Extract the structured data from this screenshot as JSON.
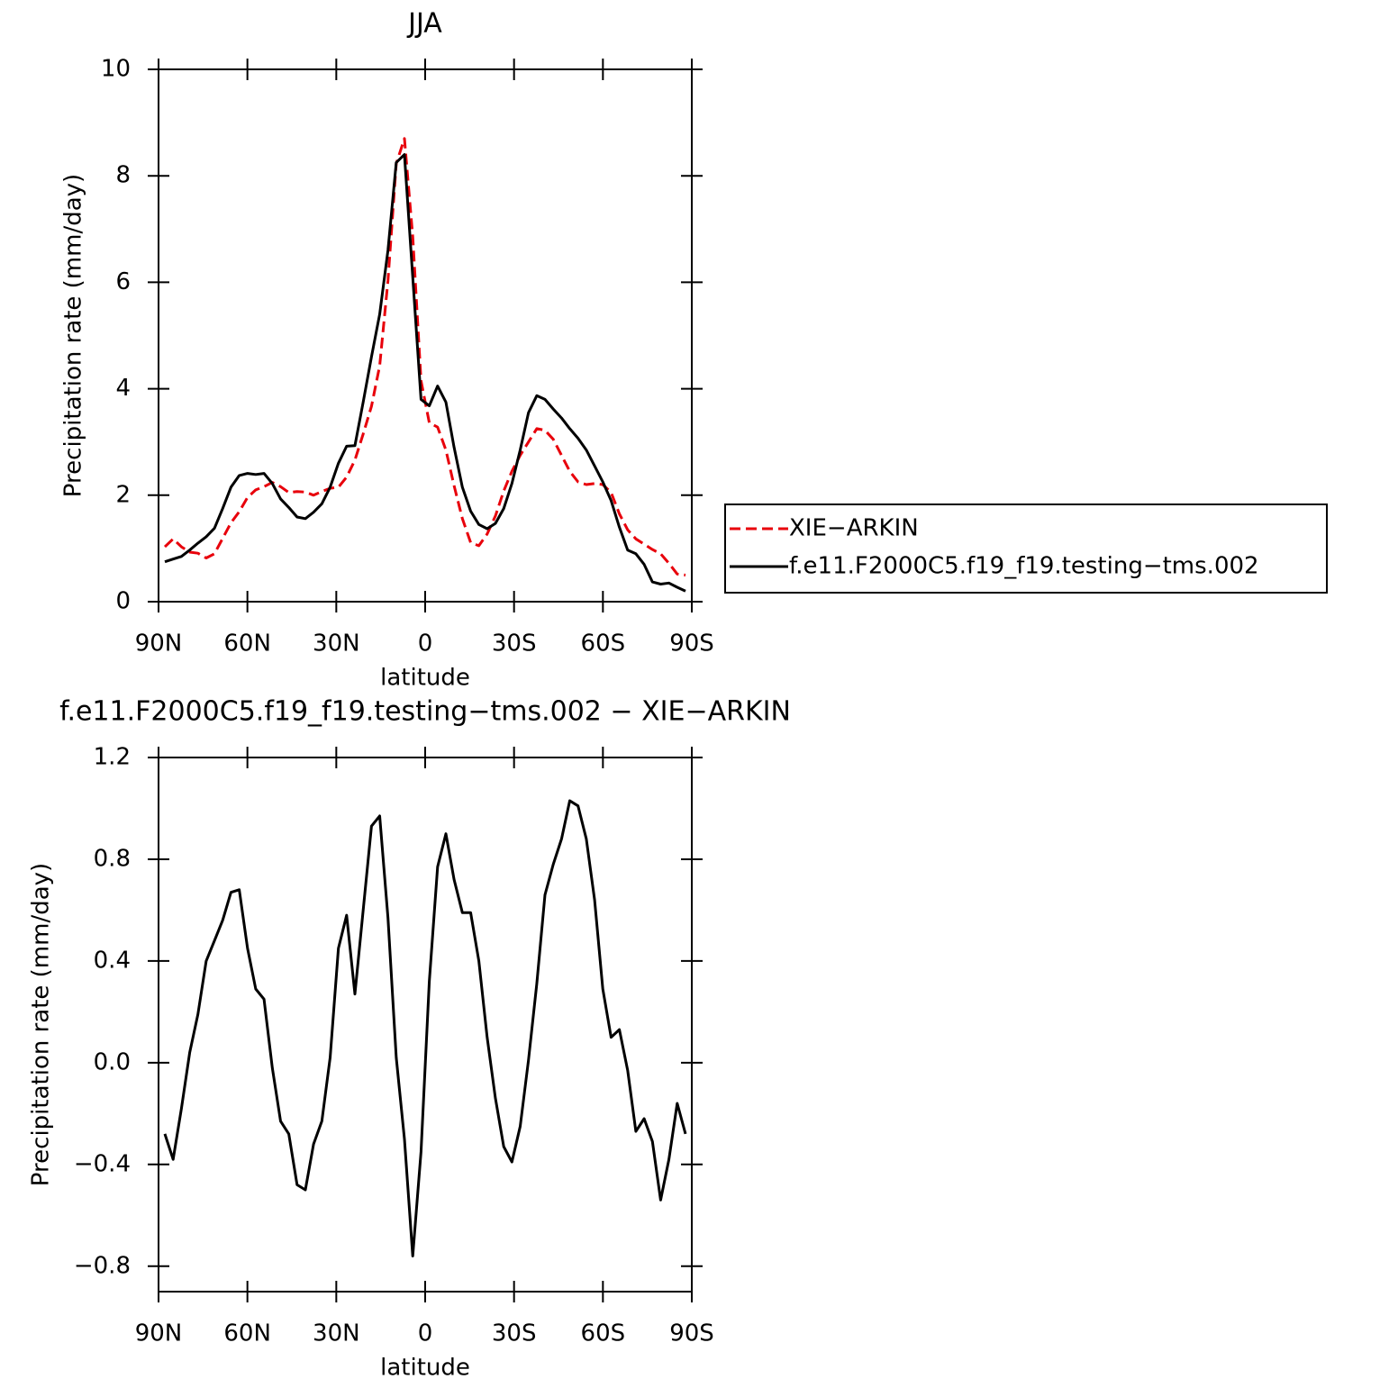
{
  "chart_data": [
    {
      "type": "line",
      "title": "JJA",
      "xlabel": "latitude",
      "ylabel": "Precipitation rate (mm/day)",
      "x": [
        87.86,
        85.07,
        82.28,
        79.49,
        76.7,
        73.91,
        71.13,
        68.34,
        65.55,
        62.76,
        59.97,
        57.18,
        54.39,
        51.6,
        48.81,
        46.02,
        43.24,
        40.45,
        37.66,
        34.87,
        32.08,
        29.29,
        26.5,
        23.71,
        20.92,
        18.13,
        15.35,
        12.56,
        9.77,
        6.98,
        4.19,
        1.4,
        -1.4,
        -4.19,
        -6.98,
        -9.77,
        -12.56,
        -15.35,
        -18.13,
        -20.92,
        -23.71,
        -26.5,
        -29.29,
        -32.08,
        -34.87,
        -37.66,
        -40.45,
        -43.24,
        -46.02,
        -48.81,
        -51.6,
        -54.39,
        -57.18,
        -59.97,
        -62.76,
        -65.55,
        -68.34,
        -71.13,
        -73.91,
        -76.7,
        -79.49,
        -82.28,
        -85.07,
        -87.86
      ],
      "series": [
        {
          "name": "XIE−ARKIN",
          "color": "#e8000b",
          "dashed": true,
          "values": [
            1.03,
            1.18,
            1.03,
            0.93,
            0.91,
            0.82,
            0.9,
            1.19,
            1.48,
            1.69,
            1.96,
            2.1,
            2.16,
            2.24,
            2.16,
            2.05,
            2.07,
            2.06,
            2.0,
            2.07,
            2.13,
            2.15,
            2.34,
            2.66,
            3.15,
            3.67,
            4.43,
            6.03,
            8.23,
            8.7,
            6.86,
            4.15,
            3.36,
            3.28,
            2.85,
            2.18,
            1.56,
            1.11,
            1.05,
            1.27,
            1.61,
            2.08,
            2.45,
            2.75,
            3.0,
            3.25,
            3.22,
            3.05,
            2.75,
            2.45,
            2.25,
            2.2,
            2.22,
            2.2,
            2.05,
            1.65,
            1.35,
            1.18,
            1.08,
            0.98,
            0.9,
            0.72,
            0.52,
            0.5
          ]
        },
        {
          "name": "f.e11.F2000C5.f19_f19.testing−tms.002",
          "color": "#000000",
          "dashed": false,
          "values": [
            0.75,
            0.8,
            0.85,
            0.97,
            1.1,
            1.22,
            1.38,
            1.75,
            2.15,
            2.37,
            2.41,
            2.39,
            2.41,
            2.22,
            1.93,
            1.77,
            1.59,
            1.56,
            1.68,
            1.84,
            2.15,
            2.6,
            2.92,
            2.93,
            3.75,
            4.6,
            5.4,
            6.6,
            8.25,
            8.4,
            6.1,
            3.8,
            3.68,
            4.05,
            3.75,
            2.9,
            2.15,
            1.7,
            1.45,
            1.37,
            1.47,
            1.75,
            2.22,
            2.85,
            3.55,
            3.87,
            3.8,
            3.62,
            3.45,
            3.25,
            3.07,
            2.85,
            2.55,
            2.25,
            1.9,
            1.4,
            0.97,
            0.9,
            0.7,
            0.37,
            0.33,
            0.35,
            0.27,
            0.2
          ]
        }
      ],
      "xlim": [
        90,
        -90
      ],
      "xticks": [
        {
          "value": 90,
          "label": "90N"
        },
        {
          "value": 60,
          "label": "60N"
        },
        {
          "value": 30,
          "label": "30N"
        },
        0,
        {
          "value": -30,
          "label": "30S"
        },
        {
          "value": -60,
          "label": "60S"
        },
        {
          "value": -90,
          "label": "90S"
        }
      ],
      "ylim": [
        0,
        10
      ],
      "yticks": [
        0,
        2,
        4,
        6,
        8,
        10
      ],
      "legend": "right"
    },
    {
      "type": "line",
      "title": "f.e11.F2000C5.f19_f19.testing−tms.002 − XIE−ARKIN",
      "xlabel": "latitude",
      "ylabel": "Precipitation rate (mm/day)",
      "x": [
        87.86,
        85.07,
        82.28,
        79.49,
        76.7,
        73.91,
        71.13,
        68.34,
        65.55,
        62.76,
        59.97,
        57.18,
        54.39,
        51.6,
        48.81,
        46.02,
        43.24,
        40.45,
        37.66,
        34.87,
        32.08,
        29.29,
        26.5,
        23.71,
        20.92,
        18.13,
        15.35,
        12.56,
        9.77,
        6.98,
        4.19,
        1.4,
        -1.4,
        -4.19,
        -6.98,
        -9.77,
        -12.56,
        -15.35,
        -18.13,
        -20.92,
        -23.71,
        -26.5,
        -29.29,
        -32.08,
        -34.87,
        -37.66,
        -40.45,
        -43.24,
        -46.02,
        -48.81,
        -51.6,
        -54.39,
        -57.18,
        -59.97,
        -62.76,
        -65.55,
        -68.34,
        -71.13,
        -73.91,
        -76.7,
        -79.49,
        -82.28,
        -85.07,
        -87.86
      ],
      "series": [
        {
          "color": "#000000",
          "dashed": false,
          "values": [
            -0.28,
            -0.38,
            -0.18,
            0.04,
            0.19,
            0.4,
            0.48,
            0.56,
            0.67,
            0.68,
            0.45,
            0.29,
            0.25,
            -0.02,
            -0.23,
            -0.28,
            -0.48,
            -0.5,
            -0.32,
            -0.23,
            0.02,
            0.45,
            0.58,
            0.27,
            0.6,
            0.93,
            0.97,
            0.57,
            0.02,
            -0.3,
            -0.76,
            -0.35,
            0.32,
            0.77,
            0.9,
            0.72,
            0.59,
            0.59,
            0.4,
            0.1,
            -0.14,
            -0.33,
            -0.39,
            -0.25,
            0.01,
            0.31,
            0.66,
            0.78,
            0.88,
            1.03,
            1.01,
            0.88,
            0.64,
            0.29,
            0.1,
            0.13,
            -0.03,
            -0.27,
            -0.22,
            -0.31,
            -0.54,
            -0.38,
            -0.16,
            -0.28
          ]
        }
      ],
      "xlim": [
        90,
        -90
      ],
      "xticks": [
        {
          "value": 90,
          "label": "90N"
        },
        {
          "value": 60,
          "label": "60N"
        },
        {
          "value": 30,
          "label": "30N"
        },
        0,
        {
          "value": -30,
          "label": "30S"
        },
        {
          "value": -60,
          "label": "60S"
        },
        {
          "value": -90,
          "label": "90S"
        }
      ],
      "ylim": [
        -0.9,
        1.2
      ],
      "yticks": [
        {
          "value": -0.8,
          "label": "−0.8"
        },
        {
          "value": -0.4,
          "label": "−0.4"
        },
        {
          "value": 0,
          "label": "0.0"
        },
        0.4,
        0.8,
        1.2
      ]
    }
  ]
}
